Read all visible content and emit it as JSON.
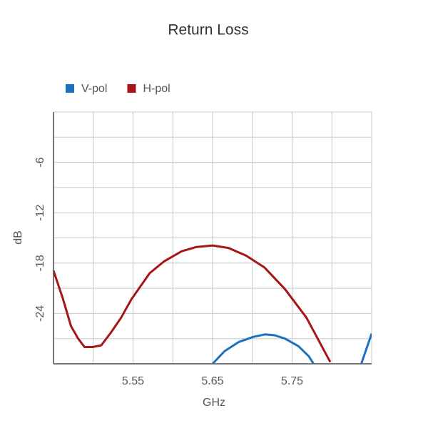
{
  "chart_data": {
    "type": "line",
    "title": "Return Loss",
    "x_label": "GHz",
    "y_label": "dB",
    "legend": "top-left",
    "grid": true,
    "xlim": [
      5.45,
      5.85
    ],
    "xticks": [
      5.55,
      5.65,
      5.75
    ],
    "x_minor_gridlines": [
      5.45,
      5.5,
      5.6,
      5.7,
      5.8,
      5.85
    ],
    "ylim": [
      -30,
      0
    ],
    "yticks": [
      -24,
      -18,
      -12,
      -6
    ],
    "y_minor_gridlines": [
      -30,
      -27,
      -21,
      -15,
      -9,
      -3,
      0
    ],
    "series": [
      {
        "name": "V-pol",
        "color": "#1f6fbf",
        "x": [
          5.65,
          5.665,
          5.683,
          5.701,
          5.716,
          5.728,
          5.741,
          5.758,
          5.771,
          5.777,
          null,
          5.837,
          5.85
        ],
        "values": [
          -30,
          -28.5,
          -27.4,
          -26.8,
          -26.5,
          -26.6,
          -27.0,
          -27.9,
          -29.1,
          -30,
          null,
          -30,
          -26.4
        ]
      },
      {
        "name": "H-pol",
        "color": "#a61616",
        "x": [
          5.45,
          5.462,
          5.472,
          5.481,
          5.489,
          5.499,
          5.51,
          5.522,
          5.535,
          5.548,
          5.571,
          5.589,
          5.611,
          5.629,
          5.65,
          5.67,
          5.692,
          5.715,
          5.741,
          5.768,
          5.798
        ],
        "values": [
          -18.9,
          -22.3,
          -25.5,
          -27.0,
          -28.0,
          -28.0,
          -27.8,
          -26.3,
          -24.5,
          -22.3,
          -19.2,
          -17.8,
          -16.6,
          -16.1,
          -15.9,
          -16.2,
          -17.1,
          -18.5,
          -21.1,
          -24.5,
          -29.8
        ]
      }
    ]
  }
}
